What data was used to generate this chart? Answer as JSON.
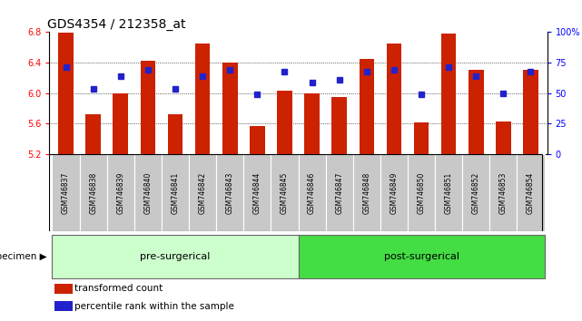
{
  "title": "GDS4354 / 212358_at",
  "samples": [
    "GSM746837",
    "GSM746838",
    "GSM746839",
    "GSM746840",
    "GSM746841",
    "GSM746842",
    "GSM746843",
    "GSM746844",
    "GSM746845",
    "GSM746846",
    "GSM746847",
    "GSM746848",
    "GSM746849",
    "GSM746850",
    "GSM746851",
    "GSM746852",
    "GSM746853",
    "GSM746854"
  ],
  "bar_values": [
    6.79,
    5.72,
    6.0,
    6.43,
    5.72,
    6.65,
    6.4,
    5.57,
    6.03,
    6.0,
    5.95,
    6.45,
    6.65,
    5.62,
    6.78,
    6.3,
    5.63,
    6.3
  ],
  "percentile_values": [
    6.34,
    6.06,
    6.22,
    6.3,
    6.06,
    6.22,
    6.3,
    5.98,
    6.28,
    6.14,
    6.18,
    6.28,
    6.3,
    5.98,
    6.34,
    6.22,
    6.0,
    6.28
  ],
  "group_pre": 9,
  "group_post": 9,
  "group_pre_label": "pre-surgerical",
  "group_post_label": "post-surgerical",
  "ylim_left": [
    5.2,
    6.8
  ],
  "ylim_right": [
    0,
    100
  ],
  "yticks_left": [
    5.2,
    5.6,
    6.0,
    6.4,
    6.8
  ],
  "yticks_right": [
    0,
    25,
    50,
    75,
    100
  ],
  "bar_color": "#cc2200",
  "dot_color": "#2222cc",
  "pre_color": "#ccffcc",
  "post_color": "#44dd44",
  "pre_border": "#aaddaa",
  "post_border": "#22bb22",
  "specimen_label": "specimen",
  "legend_bar": "transformed count",
  "legend_dot": "percentile rank within the sample",
  "title_fontsize": 10,
  "tick_fontsize": 7,
  "label_fontsize": 7.5,
  "xtick_fontsize": 5.5,
  "bar_width": 0.55
}
